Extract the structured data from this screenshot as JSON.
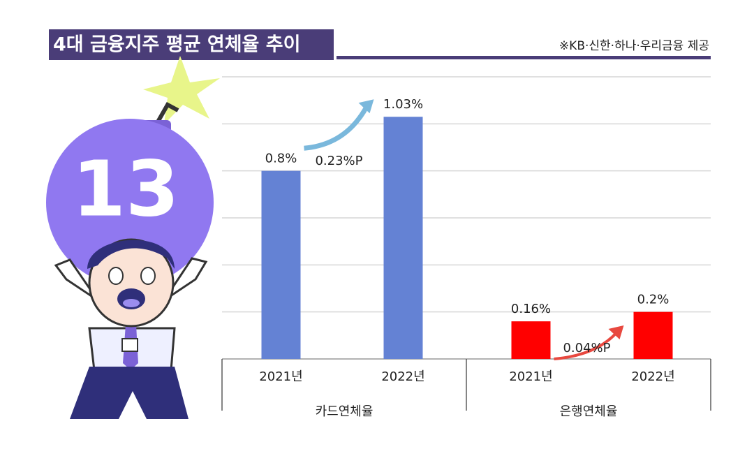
{
  "chart_data": {
    "type": "grouped-bar",
    "title": "4대 금융지주 평균 연체율 추이",
    "source": "※KB·신한·하나·우리금융 제공",
    "ylim": [
      0,
      1.2
    ],
    "yticks": [
      0,
      0.2,
      0.4,
      0.6,
      0.8,
      1,
      1.2
    ],
    "grid": true,
    "groups": [
      {
        "label": "카드연체율",
        "color": "#6482d4",
        "categories": [
          "2021년",
          "2022년"
        ],
        "values": [
          0.8,
          1.03
        ],
        "value_labels": [
          "0.8%",
          "1.03%"
        ],
        "change_label": "0.23%P",
        "arrow_color": "#7ab8dc"
      },
      {
        "label": "은행연체율",
        "color": "#ff0000",
        "categories": [
          "2021년",
          "2022년"
        ],
        "values": [
          0.16,
          0.2
        ],
        "value_labels": [
          "0.16%",
          "0.2%"
        ],
        "change_label": "0.04%P",
        "arrow_color": "#e8483f"
      }
    ]
  }
}
